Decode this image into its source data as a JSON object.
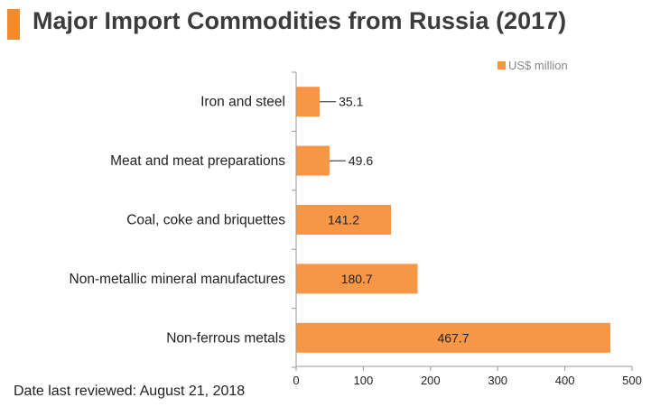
{
  "title": "Major Import Commodities from Russia (2017)",
  "footer": "Date last reviewed: August 21, 2018",
  "colors": {
    "accent": "#f28a2e",
    "bar": "#f79646",
    "title_text": "#3c3c3c"
  },
  "chart_data": {
    "type": "bar",
    "orientation": "horizontal",
    "categories": [
      "Iron and steel",
      "Meat and meat preparations",
      "Coal, coke and briquettes",
      "Non-metallic mineral manufactures",
      "Non-ferrous metals"
    ],
    "series": [
      {
        "name": "US$ million",
        "values": [
          35.1,
          49.6,
          141.2,
          180.7,
          467.7
        ]
      }
    ],
    "value_labels": [
      "35.1",
      "49.6",
      "141.2",
      "180.7",
      "467.7"
    ],
    "x_ticks": [
      "0",
      "100",
      "200",
      "300",
      "400",
      "500"
    ],
    "xlim": [
      0,
      500
    ],
    "xlabel": "",
    "ylabel": "",
    "grid": false,
    "legend_position": "top-right"
  }
}
